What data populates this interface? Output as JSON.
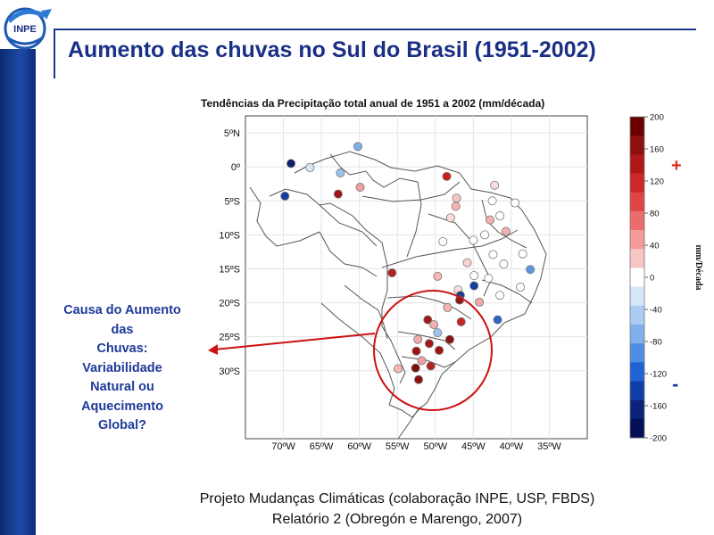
{
  "slide": {
    "title": "Aumento das chuvas no Sul do Brasil (1951-2002)",
    "logo_text": "INPE"
  },
  "map": {
    "title": "Tendências da Precipitação  total anual de 1951 a 2002 (mm/década)",
    "lat_labels": [
      "5ºN",
      "0º",
      "5ºS",
      "10ºS",
      "15ºS",
      "20ºS",
      "25ºS",
      "30ºS"
    ],
    "lon_labels": [
      "70ºW",
      "65ºW",
      "60ºW",
      "55ºW",
      "50ºW",
      "45ºW",
      "40ºW",
      "35ºW"
    ],
    "colorbar": {
      "unit": "mm/Década",
      "ticks": [
        "200",
        "160",
        "120",
        "80",
        "40",
        "0",
        "-40",
        "-80",
        "-120",
        "-160",
        "-200"
      ],
      "plus_sign": "+",
      "minus_sign": "-",
      "colors": [
        "#6b0000",
        "#8e0f0f",
        "#b01818",
        "#cc2828",
        "#df4545",
        "#eb6c6c",
        "#f39a9a",
        "#f8c5c5",
        "#ffffff",
        "#d5e6fb",
        "#abcdf4",
        "#7fb0ec",
        "#4e8de4",
        "#2163d4",
        "#0f3ea8",
        "#0a2378",
        "#050f55"
      ]
    },
    "stations": [
      {
        "lon": -69.0,
        "lat": 0.5,
        "color": "#0a1f6e"
      },
      {
        "lon": -66.5,
        "lat": -0.1,
        "color": "#d9e7f9"
      },
      {
        "lon": -62.5,
        "lat": -0.9,
        "color": "#9dc2ee"
      },
      {
        "lon": -60.2,
        "lat": 3.0,
        "color": "#7fb0ec"
      },
      {
        "lon": -69.8,
        "lat": -4.3,
        "color": "#123f9e"
      },
      {
        "lon": -62.8,
        "lat": -4.0,
        "color": "#a11717"
      },
      {
        "lon": -59.9,
        "lat": -3.0,
        "color": "#f1a0a0"
      },
      {
        "lon": -48.5,
        "lat": -1.4,
        "color": "#c71f1f"
      },
      {
        "lon": -47.2,
        "lat": -4.6,
        "color": "#f8c5c5"
      },
      {
        "lon": -47.3,
        "lat": -5.8,
        "color": "#f6b3b3"
      },
      {
        "lon": -48.0,
        "lat": -7.5,
        "color": "#fbdcdc"
      },
      {
        "lon": -49.0,
        "lat": -11.0,
        "color": "#ffffff"
      },
      {
        "lon": -42.2,
        "lat": -2.7,
        "color": "#fbdcdc"
      },
      {
        "lon": -39.5,
        "lat": -5.3,
        "color": "#ffffff"
      },
      {
        "lon": -42.5,
        "lat": -5.0,
        "color": "#ffffff"
      },
      {
        "lon": -41.5,
        "lat": -7.2,
        "color": "#ffffff"
      },
      {
        "lon": -42.8,
        "lat": -7.8,
        "color": "#f3b0b0"
      },
      {
        "lon": -40.7,
        "lat": -9.5,
        "color": "#f3b0b0"
      },
      {
        "lon": -43.5,
        "lat": -10.0,
        "color": "#ffffff"
      },
      {
        "lon": -45.0,
        "lat": -10.8,
        "color": "#ffffff"
      },
      {
        "lon": -42.4,
        "lat": -12.9,
        "color": "#ffffff"
      },
      {
        "lon": -38.5,
        "lat": -12.8,
        "color": "#ffffff"
      },
      {
        "lon": -45.8,
        "lat": -14.1,
        "color": "#f8d0d0"
      },
      {
        "lon": -41.0,
        "lat": -14.3,
        "color": "#ffffff"
      },
      {
        "lon": -37.5,
        "lat": -15.1,
        "color": "#5e97e1"
      },
      {
        "lon": -49.7,
        "lat": -16.1,
        "color": "#f6b6b6"
      },
      {
        "lon": -44.9,
        "lat": -16.0,
        "color": "#ffffff"
      },
      {
        "lon": -43.0,
        "lat": -16.4,
        "color": "#ffffff"
      },
      {
        "lon": -44.9,
        "lat": -17.5,
        "color": "#123f9e"
      },
      {
        "lon": -38.8,
        "lat": -17.7,
        "color": "#ffffff"
      },
      {
        "lon": -47.0,
        "lat": -18.1,
        "color": "#fbe0e0"
      },
      {
        "lon": -41.5,
        "lat": -18.9,
        "color": "#ffffff"
      },
      {
        "lon": -46.7,
        "lat": -18.9,
        "color": "#1b3d8a"
      },
      {
        "lon": -46.8,
        "lat": -19.6,
        "color": "#8e1b1b"
      },
      {
        "lon": -44.2,
        "lat": -19.9,
        "color": "#f3a8a8"
      },
      {
        "lon": -48.4,
        "lat": -20.7,
        "color": "#f4b4b4"
      },
      {
        "lon": -55.7,
        "lat": -15.6,
        "color": "#b51f1f"
      },
      {
        "lon": -51.0,
        "lat": -22.5,
        "color": "#a11a1a"
      },
      {
        "lon": -50.2,
        "lat": -23.2,
        "color": "#f3b0b0"
      },
      {
        "lon": -46.6,
        "lat": -22.8,
        "color": "#c52525"
      },
      {
        "lon": -41.8,
        "lat": -22.5,
        "color": "#2e63c6"
      },
      {
        "lon": -49.7,
        "lat": -24.4,
        "color": "#9ec4ee"
      },
      {
        "lon": -52.3,
        "lat": -25.4,
        "color": "#f3a8a8"
      },
      {
        "lon": -48.1,
        "lat": -25.4,
        "color": "#8e0f0f"
      },
      {
        "lon": -50.8,
        "lat": -26.0,
        "color": "#a51818"
      },
      {
        "lon": -52.5,
        "lat": -27.1,
        "color": "#9e1414"
      },
      {
        "lon": -49.5,
        "lat": -27.0,
        "color": "#9e1414"
      },
      {
        "lon": -51.8,
        "lat": -28.5,
        "color": "#f0a0a0"
      },
      {
        "lon": -54.9,
        "lat": -29.7,
        "color": "#f3b8b8"
      },
      {
        "lon": -52.6,
        "lat": -29.6,
        "color": "#7a0d0d"
      },
      {
        "lon": -50.6,
        "lat": -29.3,
        "color": "#b52020"
      },
      {
        "lon": -52.2,
        "lat": -31.3,
        "color": "#8a0f0f"
      }
    ]
  },
  "cause_text": {
    "line1": "Causa do Aumento",
    "line2": "das",
    "line3": "Chuvas:",
    "line4": "Variabilidade",
    "line5": "Natural ou",
    "line6": "Aquecimento",
    "line7": "Global?"
  },
  "footer": {
    "line1": "Projeto Mudanças Climáticas (colaboração INPE, USP, FBDS)",
    "line2": "Relatório 2 (Obregón e Marengo, 2007)"
  }
}
